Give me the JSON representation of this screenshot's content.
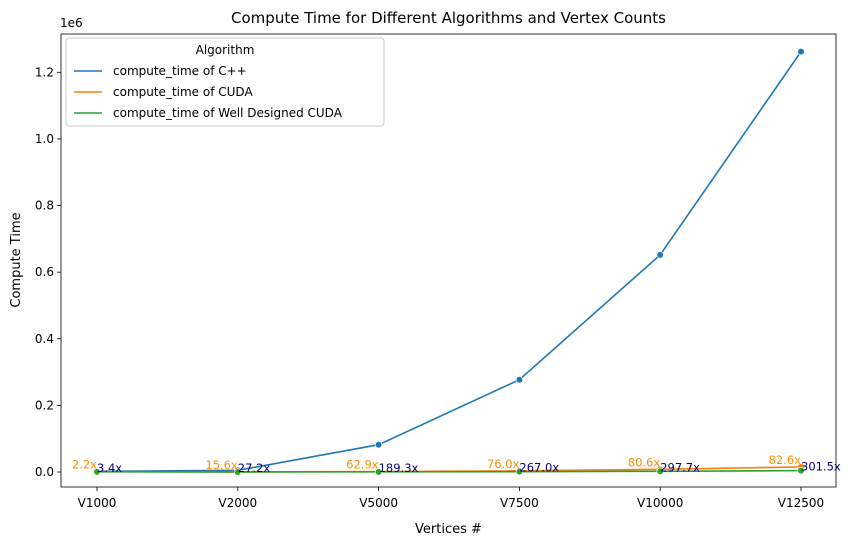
{
  "chart_data": {
    "type": "line",
    "title": "Compute Time for Different Algorithms and Vertex Counts",
    "xlabel": "Vertices #",
    "ylabel": "Compute Time",
    "y_offset_label": "1e6",
    "categories": [
      "V1000",
      "V2000",
      "V5000",
      "V7500",
      "V10000",
      "V12500"
    ],
    "ylim": [
      -45000,
      1315000
    ],
    "yticks": [
      0,
      200000,
      400000,
      600000,
      800000,
      1000000,
      1200000
    ],
    "ytick_labels": [
      "0.0",
      "0.2",
      "0.4",
      "0.6",
      "0.8",
      "1.0",
      "1.2"
    ],
    "grid": false,
    "legend": {
      "title": "Algorithm",
      "position": "top-left"
    },
    "series": [
      {
        "name": "compute_time of C++",
        "color": "#1f77b4",
        "values": [
          2000,
          5000,
          82000,
          277000,
          652000,
          1262000
        ]
      },
      {
        "name": "compute_time of CUDA",
        "color": "#ff7f0e",
        "values": [
          900,
          320,
          1300,
          3600,
          8100,
          15300
        ]
      },
      {
        "name": "compute_time of Well Designed CUDA",
        "color": "#2ca02c",
        "values": [
          590,
          180,
          430,
          1040,
          2190,
          4190
        ]
      }
    ],
    "annotations": [
      {
        "series": 1,
        "color": "#ff8c00",
        "labels": [
          "2.2x",
          "15.6x",
          "62.9x",
          "76.0x",
          "80.6x",
          "82.6x"
        ]
      },
      {
        "series": 2,
        "color": "#000080",
        "labels": [
          "3.4x",
          "27.2x",
          "189.3x",
          "267.0x",
          "297.7x",
          "301.5x"
        ]
      }
    ]
  }
}
